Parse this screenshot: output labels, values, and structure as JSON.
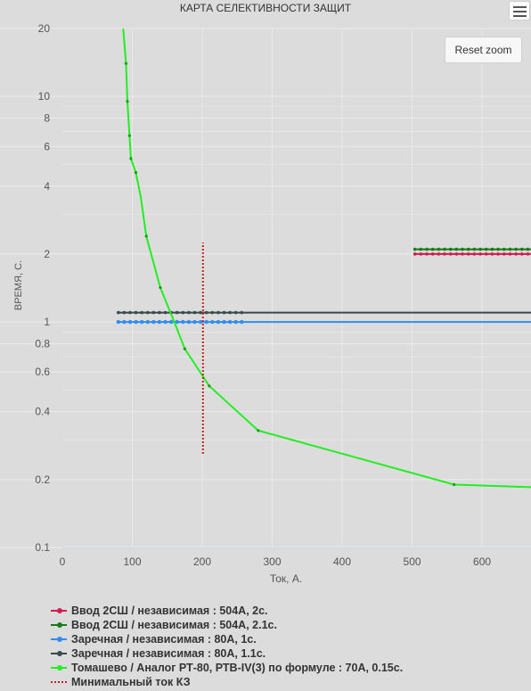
{
  "header": {
    "title": "КАРТА СЕЛЕКТИВНОСТИ ЗАЩИТ",
    "menu_icon": "hamburger-menu-icon",
    "reset_zoom_label": "Reset zoom"
  },
  "chart_data": {
    "type": "line",
    "title": "КАРТА СЕЛЕКТИВНОСТИ ЗАЩИТ",
    "xlabel": "Ток, А.",
    "ylabel": "ВРЕМЯ, С.",
    "xlim": [
      0,
      670
    ],
    "ylim": [
      0.1,
      20
    ],
    "y_scale": "log",
    "x_ticks": [
      0,
      100,
      200,
      300,
      400,
      500,
      600
    ],
    "x_tick_labels": [
      "0",
      "100",
      "200",
      "300",
      "400",
      "500",
      "600"
    ],
    "y_ticks": [
      0.1,
      0.2,
      0.4,
      0.6,
      0.8,
      1,
      2,
      4,
      6,
      8,
      10,
      20
    ],
    "y_tick_labels": [
      "0.1",
      "0.2",
      "0.4",
      "0.6",
      "0.8",
      "1",
      "2",
      "4",
      "6",
      "8",
      "10",
      "20"
    ],
    "grid": true,
    "legend_position": "bottom",
    "series": [
      {
        "name": "Ввод 2СШ / независимая : 504А, 2с.",
        "color": "#d01c4b",
        "style": "line-markers",
        "x": [
          504,
          670
        ],
        "y": [
          2,
          2
        ]
      },
      {
        "name": "Ввод 2СШ / независимая : 504А, 2.1с.",
        "color": "#1a7a1a",
        "style": "line-markers",
        "x": [
          504,
          670
        ],
        "y": [
          2.1,
          2.1
        ]
      },
      {
        "name": "Заречная / независимая : 80А, 1с.",
        "color": "#2f8ef0",
        "style": "line-markers",
        "x": [
          80,
          670
        ],
        "y": [
          1,
          1
        ]
      },
      {
        "name": "Заречная / независимая : 80А, 1.1с.",
        "color": "#3a4a4a",
        "style": "line-markers",
        "x": [
          80,
          670
        ],
        "y": [
          1.1,
          1.1
        ]
      },
      {
        "name": "Томашево / Аналог РТ-80, РТВ-IV(3) по формуле : 70А, 0.15с.",
        "color": "#22ee22",
        "style": "line",
        "x": [
          87,
          91,
          93,
          96,
          98,
          105,
          112,
          120,
          140,
          160,
          175,
          210,
          280,
          560,
          670
        ],
        "y": [
          20,
          14,
          9.5,
          6.7,
          5.3,
          4.6,
          3.6,
          2.4,
          1.42,
          1.0,
          0.76,
          0.52,
          0.33,
          0.19,
          0.185
        ],
        "markers": [
          91,
          93,
          96,
          98,
          105,
          120,
          140,
          175,
          210,
          280,
          560
        ]
      },
      {
        "name": "Минимальный ток КЗ",
        "color": "#c81d25",
        "style": "dotted",
        "x": [
          201,
          201
        ],
        "y": [
          0.26,
          2.25
        ]
      }
    ]
  }
}
